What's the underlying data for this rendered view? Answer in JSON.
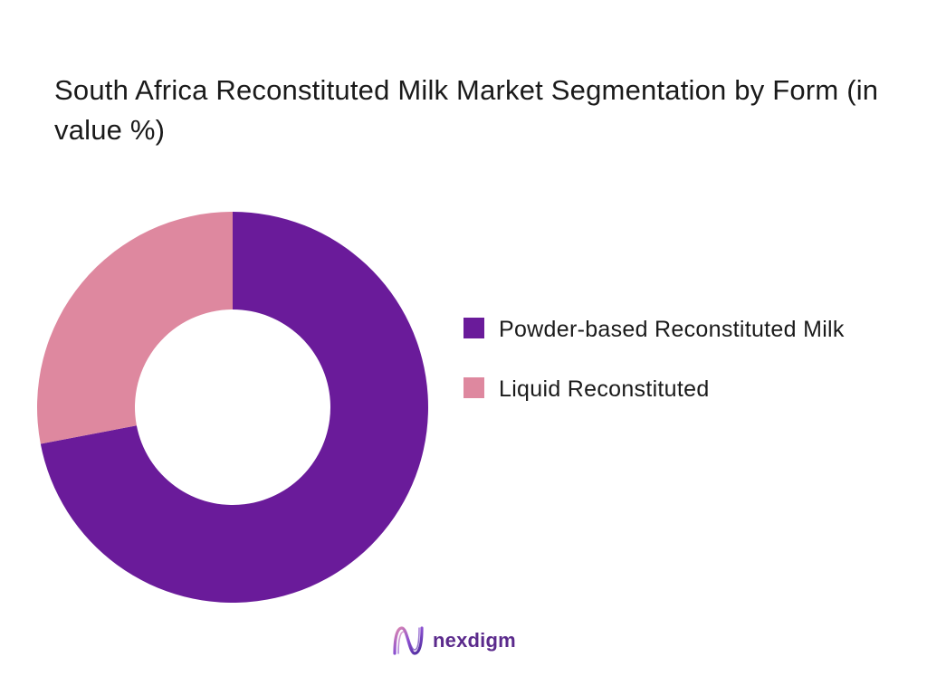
{
  "chart_data": {
    "type": "pie",
    "title": "South Africa Reconstituted Milk Market Segmentation by Form (in value %)",
    "donut": true,
    "legend_position": "right",
    "series": [
      {
        "name": "Powder-based Reconstituted Milk",
        "value": 72,
        "color": "#6a1b9a"
      },
      {
        "name": "Liquid Reconstituted",
        "value": 28,
        "color": "#de889f"
      }
    ]
  },
  "branding": {
    "logo_text": "nexdigm"
  }
}
